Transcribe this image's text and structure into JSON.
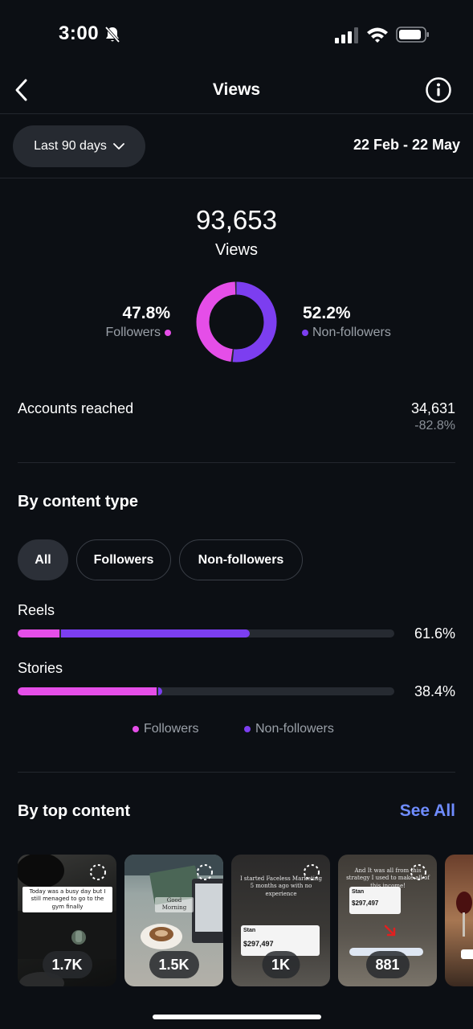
{
  "status": {
    "time": "3:00"
  },
  "header": {
    "title": "Views"
  },
  "filter": {
    "range_label": "Last 90 days",
    "date_range": "22 Feb - 22 May"
  },
  "summary": {
    "total": "93,653",
    "total_label": "Views",
    "followers_pct": "47.8%",
    "followers_label": "Followers",
    "nonfollowers_pct": "52.2%",
    "nonfollowers_label": "Non-followers",
    "followers_fraction": 0.478,
    "nonfollowers_fraction": 0.522
  },
  "reach": {
    "label": "Accounts reached",
    "value": "34,631",
    "change": "-82.8%"
  },
  "content_type": {
    "title": "By content type",
    "tabs": [
      "All",
      "Followers",
      "Non-followers"
    ],
    "rows": [
      {
        "label": "Reels",
        "pct": "61.6%",
        "followers_fraction": 0.11,
        "nonfollowers_fraction": 0.506
      },
      {
        "label": "Stories",
        "pct": "38.4%",
        "followers_fraction": 0.369,
        "nonfollowers_fraction": 0.015
      }
    ],
    "legend": {
      "followers": "Followers",
      "nonfollowers": "Non-followers"
    }
  },
  "top_content": {
    "title": "By top content",
    "see_all": "See All",
    "items": [
      {
        "count": "1.7K",
        "caption": "Today was a busy day but I still menaged to go to the gym finally"
      },
      {
        "count": "1.5K",
        "caption": "Good Morning"
      },
      {
        "count": "1K",
        "caption": "I started Faceless Marketing 5 months ago with no experience",
        "card_brand": "Stan",
        "card_amount": "$297,497"
      },
      {
        "count": "881",
        "caption": "And It was all from this strategy I used to make all of this income!",
        "card_brand": "Stan",
        "card_amount": "$297,497"
      }
    ]
  },
  "colors": {
    "followers": "#e54ee8",
    "nonfollowers": "#7c3ef0",
    "accent_link": "#6f8cff",
    "background": "#0c0f14"
  }
}
